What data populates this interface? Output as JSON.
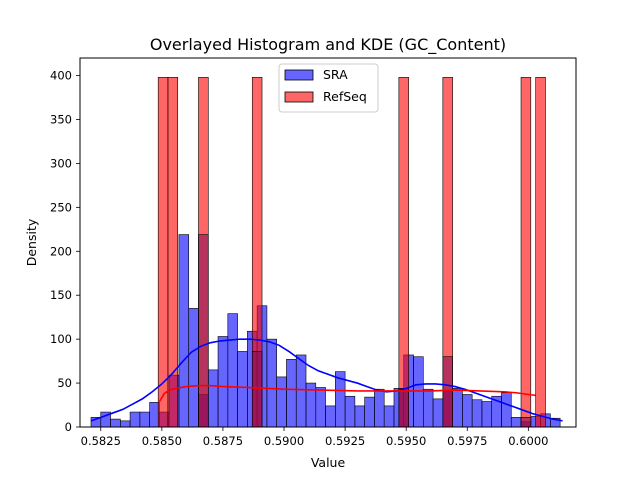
{
  "chart_data": {
    "type": "histogram",
    "title": "Overlayed Histogram and KDE (GC_Content)",
    "xlabel": "Value",
    "ylabel": "Density",
    "xlim": [
      0.58165,
      0.60195
    ],
    "ylim": [
      0,
      420
    ],
    "xticks": [
      0.5825,
      0.585,
      0.5875,
      0.59,
      0.5925,
      0.595,
      0.5975,
      0.6
    ],
    "xtick_labels": [
      "0.5825",
      "0.5850",
      "0.5875",
      "0.5900",
      "0.5925",
      "0.5950",
      "0.5975",
      "0.6000"
    ],
    "yticks": [
      0,
      50,
      100,
      150,
      200,
      250,
      300,
      350,
      400
    ],
    "ytick_labels": [
      "0",
      "50",
      "100",
      "150",
      "200",
      "250",
      "300",
      "350",
      "400"
    ],
    "legend": {
      "position": "top-center",
      "entries": [
        "SRA",
        "RefSeq"
      ]
    },
    "grid": false,
    "series": [
      {
        "name": "SRA",
        "color": "#0000ff",
        "edge_color": "#000000",
        "bin_width": 0.0004,
        "bin_start": 0.5821,
        "values": [
          11,
          17,
          9,
          7,
          17,
          17,
          28,
          17,
          59,
          219,
          135,
          37,
          65,
          103,
          129,
          86,
          109,
          138,
          100,
          57,
          77,
          82,
          50,
          45,
          24,
          63,
          35,
          24,
          34,
          43,
          24,
          44,
          82,
          80,
          43,
          32,
          41,
          44,
          37,
          31,
          29,
          35,
          39,
          11,
          6,
          12,
          15,
          10
        ],
        "kde": {
          "x": [
            0.5821,
            0.5826,
            0.583,
            0.5834,
            0.5838,
            0.5842,
            0.5846,
            0.585,
            0.5854,
            0.5858,
            0.5862,
            0.5866,
            0.587,
            0.5874,
            0.5878,
            0.5882,
            0.5886,
            0.589,
            0.5894,
            0.5898,
            0.5902,
            0.5906,
            0.591,
            0.5914,
            0.5918,
            0.5922,
            0.5926,
            0.593,
            0.5934,
            0.5938,
            0.5942,
            0.5946,
            0.595,
            0.5954,
            0.5958,
            0.5962,
            0.5966,
            0.597,
            0.5974,
            0.5978,
            0.5982,
            0.5986,
            0.599,
            0.5994,
            0.5998,
            0.6002,
            0.6006,
            0.601,
            0.6014
          ],
          "y": [
            7,
            12,
            16,
            20,
            26,
            32,
            40,
            49,
            60,
            73,
            85,
            92,
            96,
            98,
            99,
            100,
            100,
            99,
            97,
            93,
            86,
            78,
            70,
            64,
            60,
            56,
            53,
            50,
            46,
            42,
            40,
            41,
            44,
            48,
            49,
            49,
            48,
            46,
            43,
            39,
            35,
            31,
            27,
            23,
            19,
            15,
            12,
            9,
            7
          ]
        }
      },
      {
        "name": "RefSeq",
        "color": "#ff0000",
        "edge_color": "#000000",
        "bin_width": 0.0004,
        "bars": [
          {
            "x": 0.58485,
            "value": 398
          },
          {
            "x": 0.58525,
            "value": 398
          },
          {
            "x": 0.5865,
            "value": 398
          },
          {
            "x": 0.5887,
            "value": 398
          },
          {
            "x": 0.5947,
            "value": 398
          },
          {
            "x": 0.5965,
            "value": 398
          },
          {
            "x": 0.5997,
            "value": 398
          },
          {
            "x": 0.6003,
            "value": 398
          }
        ],
        "overlap_bars": [
          {
            "x": 0.5865,
            "value": 219
          },
          {
            "x": 0.5887,
            "value": 86
          },
          {
            "x": 0.5947,
            "value": 44
          },
          {
            "x": 0.5965,
            "value": 80
          },
          {
            "x": 0.5997,
            "value": 11
          }
        ],
        "kde": {
          "x": [
            0.5849,
            0.5851,
            0.5853,
            0.5856,
            0.586,
            0.5865,
            0.587,
            0.5875,
            0.5885,
            0.59,
            0.5915,
            0.593,
            0.5945,
            0.596,
            0.597,
            0.598,
            0.599,
            0.5995,
            0.6,
            0.6003
          ],
          "y": [
            29,
            38,
            42,
            44,
            46,
            47,
            47,
            46,
            45,
            43,
            42,
            41,
            41,
            41,
            42,
            41,
            40,
            39,
            37,
            36
          ]
        }
      }
    ]
  }
}
